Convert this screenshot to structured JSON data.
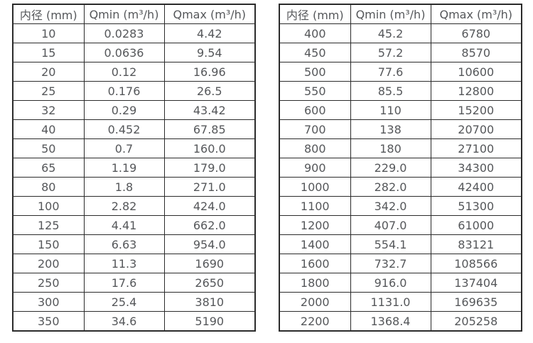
{
  "colors": {
    "border": "#2b2b2b",
    "text": "#55575a",
    "background": "#ffffff"
  },
  "tables": [
    {
      "name": "flow-table-small-diameters",
      "headers": [
        "内径 (mm)",
        "Qmin (m³/h)",
        "Qmax (m³/h)"
      ],
      "rows": [
        [
          "10",
          "0.0283",
          "4.42"
        ],
        [
          "15",
          "0.0636",
          "9.54"
        ],
        [
          "20",
          "0.12",
          "16.96"
        ],
        [
          "25",
          "0.176",
          "26.5"
        ],
        [
          "32",
          "0.29",
          "43.42"
        ],
        [
          "40",
          "0.452",
          "67.85"
        ],
        [
          "50",
          "0.7",
          "160.0"
        ],
        [
          "65",
          "1.19",
          "179.0"
        ],
        [
          "80",
          "1.8",
          "271.0"
        ],
        [
          "100",
          "2.82",
          "424.0"
        ],
        [
          "125",
          "4.41",
          "662.0"
        ],
        [
          "150",
          "6.63",
          "954.0"
        ],
        [
          "200",
          "11.3",
          "1690"
        ],
        [
          "250",
          "17.6",
          "2650"
        ],
        [
          "300",
          "25.4",
          "3810"
        ],
        [
          "350",
          "34.6",
          "5190"
        ]
      ]
    },
    {
      "name": "flow-table-large-diameters",
      "headers": [
        "内径 (mm)",
        "Qmin (m³/h)",
        "Qmax (m³/h)"
      ],
      "rows": [
        [
          "400",
          "45.2",
          "6780"
        ],
        [
          "450",
          "57.2",
          "8570"
        ],
        [
          "500",
          "77.6",
          "10600"
        ],
        [
          "550",
          "85.5",
          "12800"
        ],
        [
          "600",
          "110",
          "15200"
        ],
        [
          "700",
          "138",
          "20700"
        ],
        [
          "800",
          "180",
          "27100"
        ],
        [
          "900",
          "229.0",
          "34300"
        ],
        [
          "1000",
          "282.0",
          "42400"
        ],
        [
          "1100",
          "342.0",
          "51300"
        ],
        [
          "1200",
          "407.0",
          "61000"
        ],
        [
          "1400",
          "554.1",
          "83121"
        ],
        [
          "1600",
          "732.7",
          "108566"
        ],
        [
          "1800",
          "916.0",
          "137404"
        ],
        [
          "2000",
          "1131.0",
          "169635"
        ],
        [
          "2200",
          "1368.4",
          "205258"
        ]
      ]
    }
  ]
}
